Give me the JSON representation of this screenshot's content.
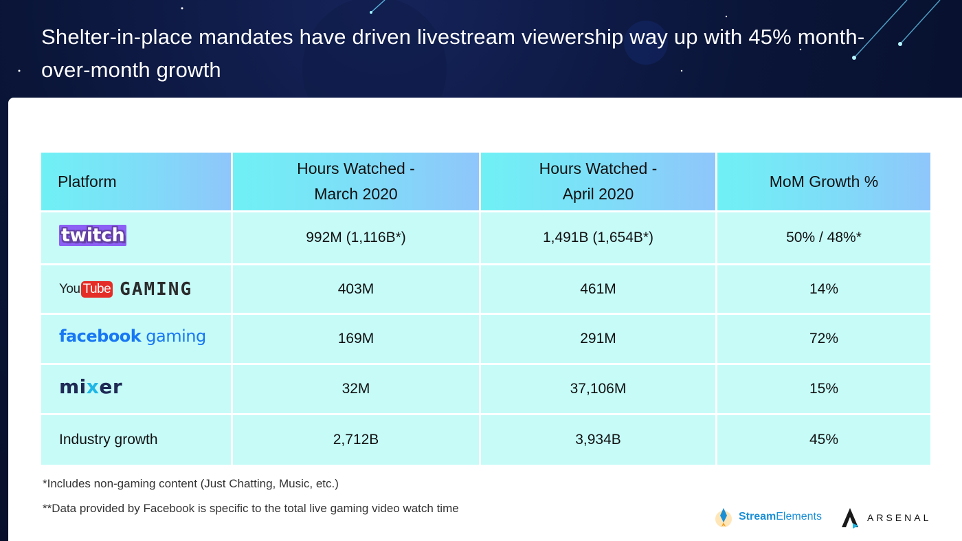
{
  "headline": "Shelter-in-place mandates have driven livestream viewership way up with 45% month-over-month growth",
  "table": {
    "headers": {
      "platform": "Platform",
      "march_line1": "Hours Watched -",
      "march_line2": "March 2020",
      "april_line1": "Hours Watched -",
      "april_line2": "April 2020",
      "growth": "MoM Growth %"
    },
    "rows": [
      {
        "platform": "twitch",
        "march": "992M (1,116B*)",
        "april": "1,491B (1,654B*)",
        "growth": "50% / 48%*"
      },
      {
        "platform_you": "You",
        "platform_tube": "Tube",
        "platform_gaming": "GAMING",
        "march": "403M",
        "april": "461M",
        "growth": "14%"
      },
      {
        "platform_face": "facebook",
        "platform_gaming": "gaming",
        "march": "169M",
        "april": "291M",
        "growth": "72%"
      },
      {
        "platform_a": "mi",
        "platform_x": "x",
        "platform_b": "er",
        "march": "32M",
        "april": "37,106M",
        "growth": "15%"
      },
      {
        "platform": "Industry growth",
        "march": "2,712B",
        "april": "3,934B",
        "growth": "45%"
      }
    ]
  },
  "footnotes": [
    "*Includes non-gaming content (Just Chatting, Music, etc.)",
    "**Data provided by Facebook is specific to the total live gaming video watch time"
  ],
  "brands": {
    "streamelements_bold": "Stream",
    "streamelements_light": "Elements",
    "arsenal": "ARSENAL"
  },
  "colors": {
    "background": "#0a1538",
    "header_cell": "#7fdcf8",
    "body_cell": "#c6fbf8",
    "twitch": "#6441a5",
    "youtube_red": "#e52d27",
    "facebook_blue": "#1877f2",
    "mixer_navy": "#1f2a55"
  }
}
